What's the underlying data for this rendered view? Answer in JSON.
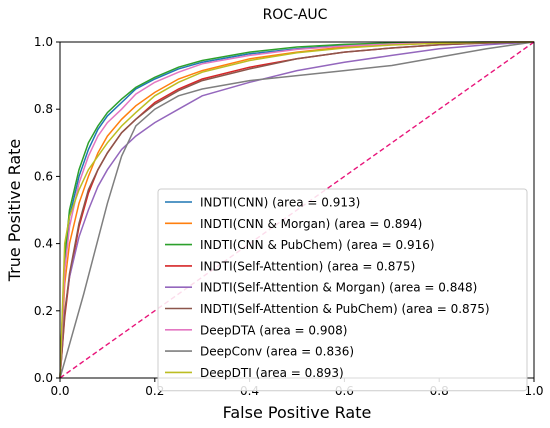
{
  "chart_data": {
    "type": "line",
    "title": "ROC-AUC",
    "xlabel": "False Positive Rate",
    "ylabel": "True Positive Rate",
    "xlim": [
      0.0,
      1.0
    ],
    "ylim": [
      0.0,
      1.0
    ],
    "xticks": [
      "0.0",
      "0.2",
      "0.4",
      "0.6",
      "0.8",
      "1.0"
    ],
    "yticks": [
      "0.0",
      "0.2",
      "0.4",
      "0.6",
      "0.8",
      "1.0"
    ],
    "grid": false,
    "legend_position": "lower-right",
    "diagonal": {
      "x": [
        0,
        1
      ],
      "y": [
        0,
        1
      ],
      "color": "#e8157a",
      "style": "dashed"
    },
    "series": [
      {
        "name": "INDTI(CNN) (area = 0.913)",
        "color": "#1f77b4",
        "x": [
          0,
          0.01,
          0.02,
          0.04,
          0.06,
          0.08,
          0.1,
          0.13,
          0.16,
          0.2,
          0.25,
          0.3,
          0.4,
          0.5,
          0.6,
          0.7,
          0.8,
          0.9,
          1.0
        ],
        "y": [
          0,
          0.35,
          0.48,
          0.6,
          0.68,
          0.74,
          0.78,
          0.82,
          0.86,
          0.89,
          0.92,
          0.94,
          0.965,
          0.98,
          0.99,
          0.995,
          0.998,
          1.0,
          1.0
        ]
      },
      {
        "name": "INDTI(CNN & Morgan) (area = 0.894)",
        "color": "#ff7f0e",
        "x": [
          0,
          0.01,
          0.02,
          0.04,
          0.06,
          0.08,
          0.1,
          0.13,
          0.16,
          0.2,
          0.25,
          0.3,
          0.4,
          0.5,
          0.6,
          0.7,
          0.8,
          0.9,
          1.0
        ],
        "y": [
          0,
          0.28,
          0.4,
          0.52,
          0.6,
          0.67,
          0.72,
          0.77,
          0.81,
          0.85,
          0.89,
          0.915,
          0.95,
          0.97,
          0.985,
          0.993,
          0.997,
          1.0,
          1.0
        ]
      },
      {
        "name": "INDTI(CNN & PubChem) (area = 0.916)",
        "color": "#2ca02c",
        "x": [
          0,
          0.01,
          0.02,
          0.04,
          0.06,
          0.08,
          0.1,
          0.13,
          0.16,
          0.2,
          0.25,
          0.3,
          0.4,
          0.5,
          0.6,
          0.7,
          0.8,
          0.9,
          1.0
        ],
        "y": [
          0,
          0.36,
          0.5,
          0.62,
          0.7,
          0.75,
          0.79,
          0.83,
          0.865,
          0.895,
          0.925,
          0.945,
          0.97,
          0.985,
          0.993,
          0.997,
          0.999,
          1.0,
          1.0
        ]
      },
      {
        "name": "INDTI(Self-Attention) (area = 0.875)",
        "color": "#d62728",
        "x": [
          0,
          0.01,
          0.02,
          0.04,
          0.06,
          0.08,
          0.1,
          0.13,
          0.16,
          0.2,
          0.25,
          0.3,
          0.4,
          0.5,
          0.6,
          0.7,
          0.8,
          0.9,
          1.0
        ],
        "y": [
          0,
          0.18,
          0.3,
          0.45,
          0.55,
          0.62,
          0.67,
          0.73,
          0.77,
          0.82,
          0.86,
          0.89,
          0.925,
          0.95,
          0.97,
          0.982,
          0.992,
          0.997,
          1.0
        ]
      },
      {
        "name": "INDTI(Self-Attention & Morgan) (area = 0.848)",
        "color": "#9467bd",
        "x": [
          0,
          0.01,
          0.02,
          0.04,
          0.06,
          0.08,
          0.1,
          0.13,
          0.16,
          0.2,
          0.25,
          0.3,
          0.4,
          0.5,
          0.6,
          0.7,
          0.8,
          0.9,
          1.0
        ],
        "y": [
          0,
          0.2,
          0.3,
          0.42,
          0.5,
          0.57,
          0.62,
          0.68,
          0.72,
          0.76,
          0.8,
          0.84,
          0.88,
          0.915,
          0.94,
          0.96,
          0.98,
          0.992,
          1.0
        ]
      },
      {
        "name": "INDTI(Self-Attention & PubChem) (area = 0.875)",
        "color": "#8c564b",
        "x": [
          0,
          0.01,
          0.02,
          0.04,
          0.06,
          0.08,
          0.1,
          0.13,
          0.16,
          0.2,
          0.25,
          0.3,
          0.4,
          0.5,
          0.6,
          0.7,
          0.8,
          0.9,
          1.0
        ],
        "y": [
          0,
          0.19,
          0.31,
          0.46,
          0.56,
          0.62,
          0.67,
          0.73,
          0.77,
          0.815,
          0.855,
          0.885,
          0.92,
          0.95,
          0.97,
          0.982,
          0.992,
          0.997,
          1.0
        ]
      },
      {
        "name": "DeepDTA (area = 0.908)",
        "color": "#e377c2",
        "x": [
          0,
          0.01,
          0.02,
          0.04,
          0.06,
          0.08,
          0.1,
          0.13,
          0.16,
          0.2,
          0.25,
          0.3,
          0.4,
          0.5,
          0.6,
          0.7,
          0.8,
          0.9,
          1.0
        ],
        "y": [
          0,
          0.32,
          0.45,
          0.58,
          0.66,
          0.72,
          0.76,
          0.8,
          0.845,
          0.88,
          0.91,
          0.935,
          0.96,
          0.978,
          0.988,
          0.994,
          0.998,
          1.0,
          1.0
        ]
      },
      {
        "name": "DeepConv (area = 0.836)",
        "color": "#7f7f7f",
        "x": [
          0,
          0.02,
          0.05,
          0.1,
          0.13,
          0.16,
          0.2,
          0.25,
          0.3,
          0.4,
          0.5,
          0.6,
          0.7,
          0.8,
          0.9,
          1.0
        ],
        "y": [
          0,
          0.1,
          0.25,
          0.52,
          0.66,
          0.75,
          0.8,
          0.84,
          0.86,
          0.885,
          0.9,
          0.915,
          0.93,
          0.955,
          0.98,
          1.0
        ]
      },
      {
        "name": "DeepDTI (area = 0.893)",
        "color": "#bcbd22",
        "x": [
          0,
          0.01,
          0.02,
          0.04,
          0.06,
          0.08,
          0.1,
          0.13,
          0.16,
          0.2,
          0.25,
          0.3,
          0.4,
          0.5,
          0.6,
          0.7,
          0.8,
          0.9,
          1.0
        ],
        "y": [
          0,
          0.4,
          0.48,
          0.56,
          0.62,
          0.66,
          0.7,
          0.75,
          0.79,
          0.84,
          0.88,
          0.91,
          0.945,
          0.968,
          0.982,
          0.991,
          0.996,
          0.999,
          1.0
        ]
      }
    ]
  }
}
